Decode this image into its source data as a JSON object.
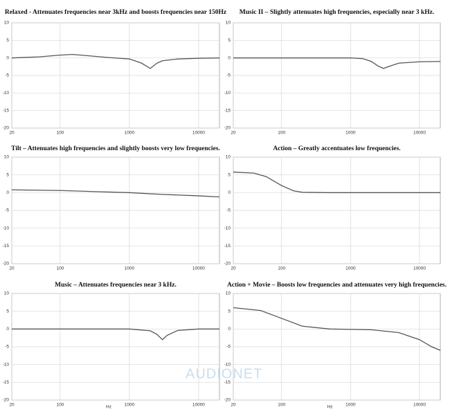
{
  "watermark": "AUDIONET",
  "chart_data": [
    {
      "type": "line",
      "title": "Relaxed - Attenuates frequencies near 3kHz and boosts frequencies near 150Hz",
      "x": [
        20,
        50,
        100,
        150,
        200,
        500,
        1000,
        1500,
        2000,
        2500,
        3000,
        5000,
        10000,
        20000
      ],
      "values": [
        0,
        0.3,
        0.8,
        1,
        0.8,
        0.1,
        -0.3,
        -1.5,
        -3,
        -1.5,
        -0.8,
        -0.3,
        -0.1,
        0
      ],
      "color": "#555555",
      "xlim": [
        20,
        20000
      ],
      "ylim": [
        -20,
        10
      ],
      "log_x": true,
      "grid": true,
      "xticks": [
        20,
        100,
        1000,
        10000
      ],
      "yticks": [
        10,
        5,
        0,
        -5,
        -10,
        -15,
        -20
      ]
    },
    {
      "type": "line",
      "title": "Music II – Slightly attenuates high frequencies, especially near 3 kHz.",
      "x": [
        20,
        100,
        1000,
        1500,
        2000,
        2500,
        3000,
        3500,
        5000,
        10000,
        20000
      ],
      "values": [
        0,
        0,
        0,
        -0.2,
        -1,
        -2.3,
        -3,
        -2.5,
        -1.5,
        -1.1,
        -1
      ],
      "color": "#555555",
      "xlim": [
        20,
        20000
      ],
      "ylim": [
        -20,
        10
      ],
      "log_x": true,
      "grid": true,
      "xticks": [
        20,
        100,
        1000,
        10000
      ],
      "yticks": [
        10,
        5,
        0,
        -5,
        -10,
        -15,
        -20
      ]
    },
    {
      "type": "line",
      "title": "Tilt – Attenuates high frequencies and slightly boosts very low frequencies.",
      "x": [
        20,
        100,
        1000,
        3000,
        10000,
        20000
      ],
      "values": [
        0.8,
        0.6,
        0,
        -0.5,
        -0.9,
        -1.2
      ],
      "color": "#555555",
      "xlim": [
        20,
        20000
      ],
      "ylim": [
        -20,
        10
      ],
      "log_x": true,
      "grid": true,
      "xticks": [
        20,
        100,
        1000,
        10000
      ],
      "yticks": [
        10,
        5,
        0,
        -5,
        -10,
        -15,
        -20
      ]
    },
    {
      "type": "line",
      "title": "Action – Greatly accentuates low frequencies.",
      "x": [
        20,
        40,
        60,
        100,
        150,
        200,
        500,
        20000
      ],
      "values": [
        5.8,
        5.5,
        4.5,
        2,
        0.5,
        0.1,
        0,
        0
      ],
      "color": "#555555",
      "xlim": [
        20,
        20000
      ],
      "ylim": [
        -20,
        10
      ],
      "log_x": true,
      "grid": true,
      "xticks": [
        20,
        100,
        1000,
        10000
      ],
      "yticks": [
        10,
        5,
        0,
        -5,
        -10,
        -15,
        -20
      ]
    },
    {
      "type": "line",
      "title": "Music – Attenuates frequencies near 3 kHz.",
      "xlabel": "Hz",
      "x": [
        20,
        1000,
        2000,
        2500,
        3000,
        3500,
        5000,
        10000,
        20000
      ],
      "values": [
        0,
        0,
        -0.5,
        -1.5,
        -3,
        -1.8,
        -0.4,
        0,
        0
      ],
      "color": "#555555",
      "xlim": [
        20,
        20000
      ],
      "ylim": [
        -20,
        10
      ],
      "log_x": true,
      "grid": true,
      "xticks": [
        20,
        100,
        1000,
        10000
      ],
      "yticks": [
        10,
        5,
        0,
        -5,
        -10,
        -15,
        -20
      ]
    },
    {
      "type": "line",
      "title": "Action + Movie – Boosts low frequencies and attenuates very high frequencies.",
      "xlabel": "Hz",
      "x": [
        20,
        50,
        100,
        200,
        500,
        2000,
        5000,
        10000,
        15000,
        20000
      ],
      "values": [
        6,
        5.2,
        3,
        0.8,
        0,
        -0.2,
        -1,
        -3,
        -5,
        -6
      ],
      "color": "#555555",
      "xlim": [
        20,
        20000
      ],
      "ylim": [
        -20,
        10
      ],
      "log_x": true,
      "grid": true,
      "xticks": [
        20,
        100,
        1000,
        10000
      ],
      "yticks": [
        10,
        5,
        0,
        -5,
        -10,
        -15,
        -20
      ]
    }
  ]
}
